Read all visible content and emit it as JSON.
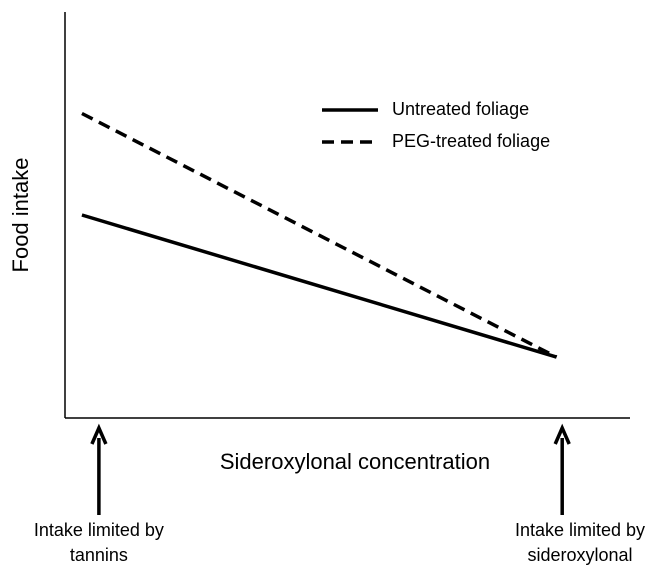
{
  "chart_data": {
    "type": "line",
    "xlabel": "Sideroxylonal concentration",
    "ylabel": "Food intake",
    "x": [
      3,
      87
    ],
    "xlim": [
      0,
      100
    ],
    "ylim": [
      0,
      100
    ],
    "legend": "upper right",
    "series": [
      {
        "name": "Untreated foliage",
        "color": "#000000",
        "style": "solid",
        "values": [
          50,
          15
        ]
      },
      {
        "name": "PEG-treated foliage",
        "color": "#000000",
        "style": "dashed",
        "values": [
          75,
          15
        ]
      }
    ],
    "annotations": [
      {
        "lines": [
          "Intake limited by",
          "tannins"
        ],
        "x": 6
      },
      {
        "lines": [
          "Intake limited by",
          "sideroxylonal"
        ],
        "x": 88
      }
    ]
  }
}
